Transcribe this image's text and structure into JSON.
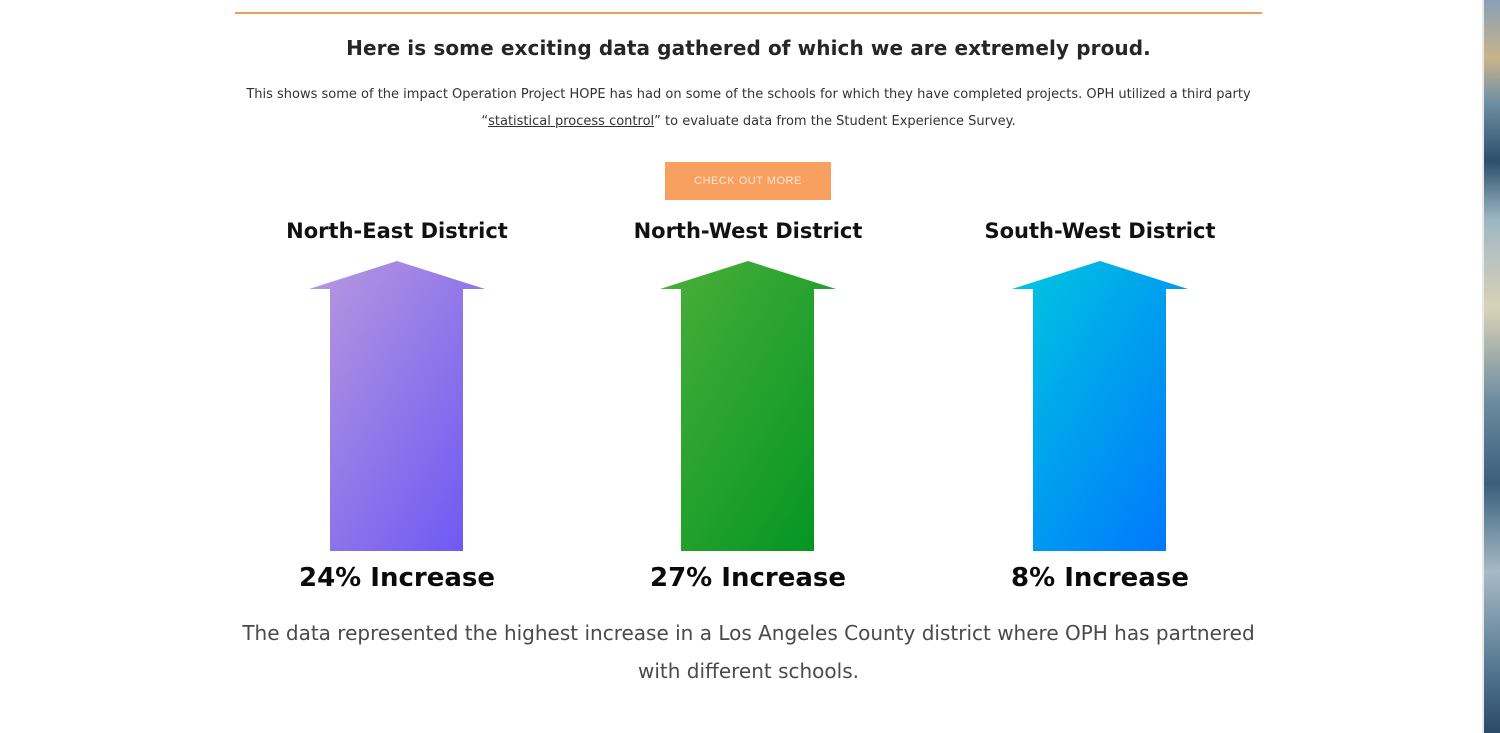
{
  "headline": "Here is some exciting data gathered of which we are extremely proud.",
  "intro": {
    "before_link": "This shows some of the impact Operation Project HOPE has had on some of the schools for which they have completed projects.  OPH utilized a third party “",
    "link_text": "statistical process control",
    "after_link": "” to evaluate data from the Student Experience Survey."
  },
  "cta": {
    "label": "CHECK OUT MORE"
  },
  "districts": [
    {
      "name": "North-East District",
      "stat": "24% Increase",
      "value": 24,
      "gradient": {
        "start": "#b89ade",
        "end": "#6a55f5"
      }
    },
    {
      "name": "North-West District",
      "stat": "27% Increase",
      "value": 27,
      "gradient": {
        "start": "#4caf3a",
        "end": "#009422"
      }
    },
    {
      "name": "South-West District",
      "stat": "8% Increase",
      "value": 8,
      "gradient": {
        "start": "#00c8df",
        "end": "#0073ff"
      }
    }
  ],
  "footnote": "The data represented the highest increase in a Los Angeles County district where OPH has partnered with different schools.",
  "colors": {
    "accent": "#f7a060",
    "divider": "#f39c5b"
  },
  "icons": {
    "district_arrow": "up-arrow-icon"
  }
}
